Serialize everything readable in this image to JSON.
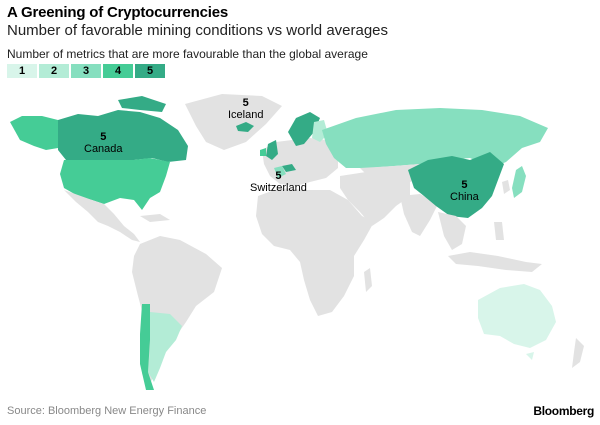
{
  "header": {
    "title": "A Greening of Cryptocurrencies",
    "subtitle": "Number of favorable mining conditions vs world averages"
  },
  "legend": {
    "title": "Number of metrics that are more favourable than the global average",
    "items": [
      {
        "label": "1",
        "color": "#d8f5ea"
      },
      {
        "label": "2",
        "color": "#b3ecd6"
      },
      {
        "label": "3",
        "color": "#86dfbf"
      },
      {
        "label": "4",
        "color": "#45cc96"
      },
      {
        "label": "5",
        "color": "#34ab86"
      }
    ]
  },
  "map": {
    "land_color": "#e2e2e2",
    "labels": [
      {
        "id": "iceland",
        "count": "5",
        "name": "Iceland"
      },
      {
        "id": "canada",
        "count": "5",
        "name": "Canada"
      },
      {
        "id": "switzerland",
        "count": "5",
        "name": "Switzerland"
      },
      {
        "id": "china",
        "count": "5",
        "name": "China"
      }
    ]
  },
  "footer": {
    "source": "Source: Bloomberg New Energy Finance",
    "brand": "Bloomberg"
  }
}
